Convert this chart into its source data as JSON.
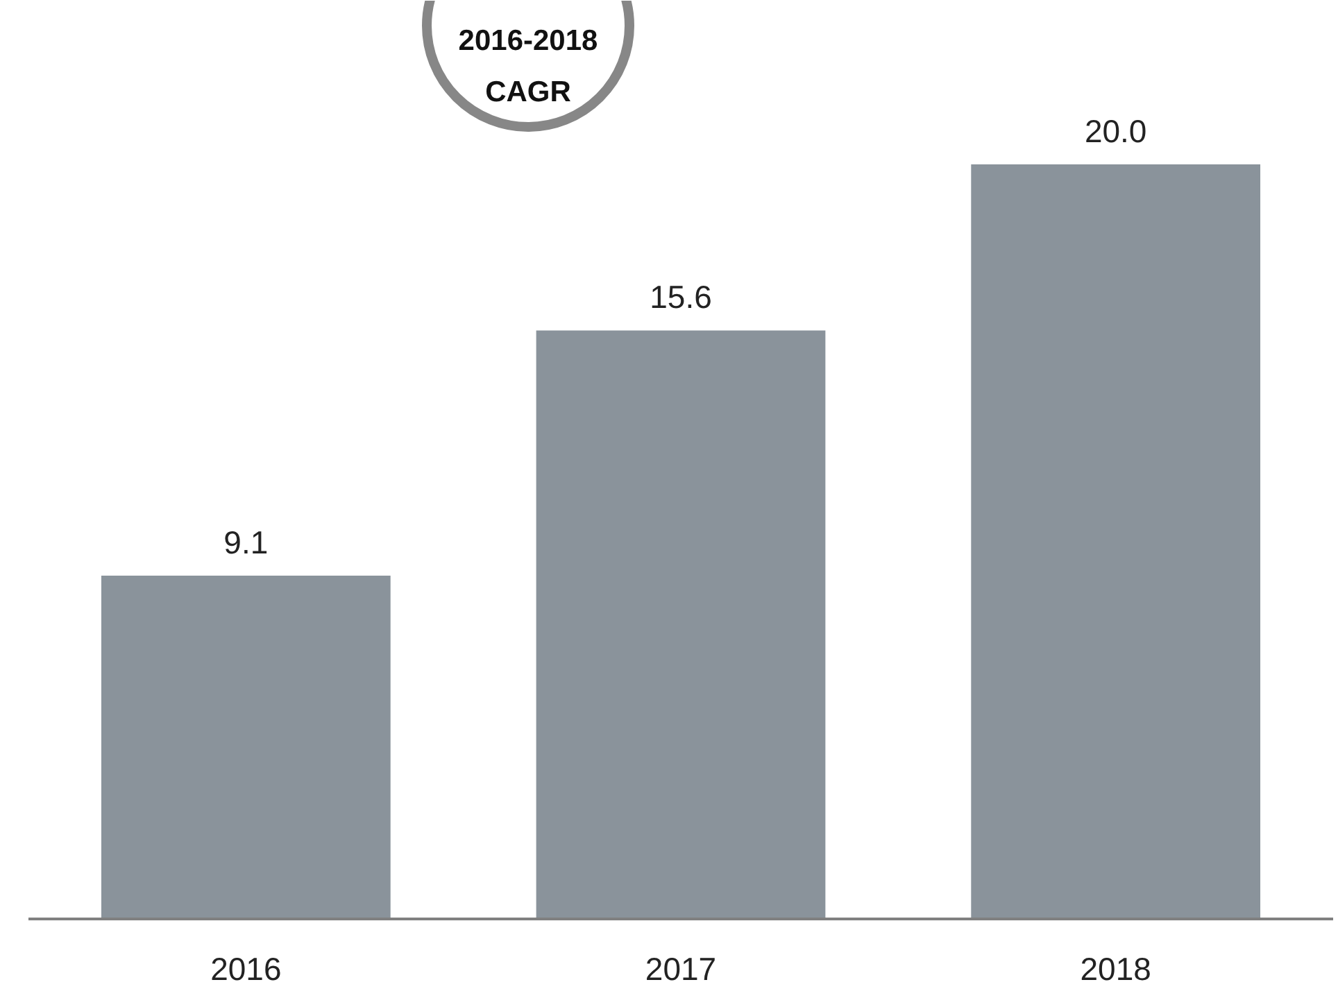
{
  "chart_data": {
    "type": "bar",
    "categories": [
      "2016",
      "2017",
      "2018"
    ],
    "values": [
      9.1,
      15.6,
      20.0
    ],
    "color": "#8a939b",
    "value_labels": [
      "9.1",
      "15.6",
      "20.0"
    ],
    "annotations": [
      "2016-2018 CAGR"
    ],
    "grid": false
  }
}
